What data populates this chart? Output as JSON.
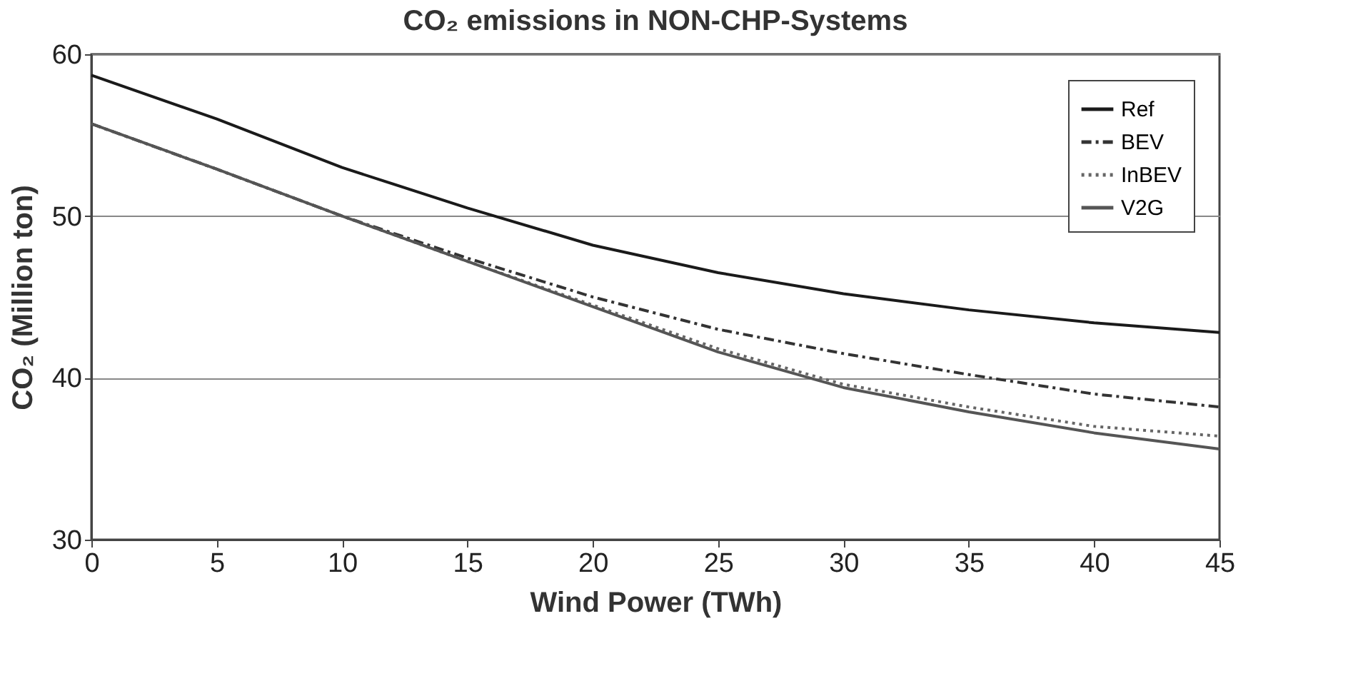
{
  "chart_data": {
    "type": "line",
    "title": "CO₂ emissions in NON-CHP-Systems",
    "xlabel": "Wind Power (TWh)",
    "ylabel": "CO₂ (Million ton)",
    "x": [
      0,
      5,
      10,
      15,
      20,
      25,
      30,
      35,
      40,
      45
    ],
    "series": [
      {
        "name": "Ref",
        "color": "#1a1a1a",
        "line_style": "solid",
        "values": [
          58.7,
          56.0,
          53.0,
          50.5,
          48.2,
          46.5,
          45.2,
          44.2,
          43.4,
          42.8
        ]
      },
      {
        "name": "BEV",
        "color": "#333333",
        "line_style": "dashed",
        "values": [
          55.7,
          52.9,
          50.0,
          47.4,
          45.0,
          43.0,
          41.5,
          40.2,
          39.0,
          38.2
        ]
      },
      {
        "name": "InBEV",
        "color": "#666666",
        "line_style": "dotted",
        "values": [
          55.7,
          52.9,
          50.0,
          47.2,
          44.5,
          41.8,
          39.6,
          38.2,
          37.0,
          36.4
        ]
      },
      {
        "name": "V2G",
        "color": "#555555",
        "line_style": "solid",
        "values": [
          55.7,
          52.9,
          50.0,
          47.2,
          44.4,
          41.6,
          39.4,
          37.9,
          36.6,
          35.6
        ]
      }
    ],
    "xlim": [
      0,
      45
    ],
    "xticks": [
      0,
      5,
      10,
      15,
      20,
      25,
      30,
      35,
      40,
      45
    ],
    "ylim": [
      30,
      60
    ],
    "yticks": [
      30,
      40,
      50,
      60
    ],
    "grid": "y",
    "legend": "top right",
    "marker": "none"
  }
}
